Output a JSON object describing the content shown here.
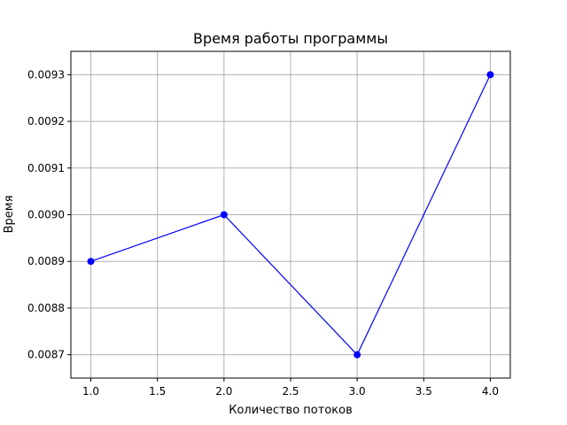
{
  "chart_data": {
    "type": "line",
    "title": "Время работы программы",
    "xlabel": "Количество потоков",
    "ylabel": "Время",
    "xlim": [
      0.85,
      4.15
    ],
    "ylim": [
      0.00865,
      0.00935
    ],
    "xticks": [
      1.0,
      1.5,
      2.0,
      2.5,
      3.0,
      3.5,
      4.0
    ],
    "xtick_labels": [
      "1.0",
      "1.5",
      "2.0",
      "2.5",
      "3.0",
      "3.5",
      "4.0"
    ],
    "yticks": [
      0.0087,
      0.0088,
      0.0089,
      0.009,
      0.0091,
      0.0092,
      0.0093
    ],
    "ytick_labels": [
      "0.0087",
      "0.0088",
      "0.0089",
      "0.0090",
      "0.0091",
      "0.0092",
      "0.0093"
    ],
    "grid": true,
    "series": [
      {
        "x": [
          1,
          2,
          3,
          4
        ],
        "y": [
          0.0089,
          0.009,
          0.0087,
          0.0093
        ],
        "color": "#0000ff",
        "marker": "circle"
      }
    ]
  }
}
